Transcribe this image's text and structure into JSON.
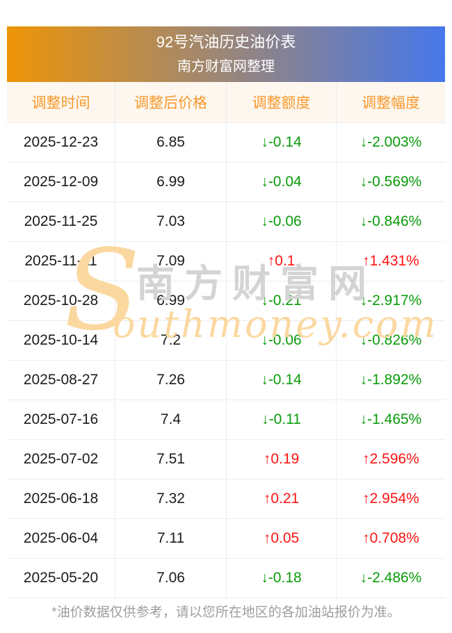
{
  "banner": {
    "title": "92号汽油历史油价表",
    "subtitle": "南方财富网整理",
    "gradient_from": "#ee9507",
    "gradient_to": "#4677eb"
  },
  "table": {
    "columns": [
      "调整时间",
      "调整后价格",
      "调整额度",
      "调整幅度"
    ],
    "rows": [
      {
        "date": "2025-12-23",
        "price": "6.85",
        "change": "↓-0.14",
        "pct": "↓-2.003%",
        "direction": "down"
      },
      {
        "date": "2025-12-09",
        "price": "6.99",
        "change": "↓-0.04",
        "pct": "↓-0.569%",
        "direction": "down"
      },
      {
        "date": "2025-11-25",
        "price": "7.03",
        "change": "↓-0.06",
        "pct": "↓-0.846%",
        "direction": "down"
      },
      {
        "date": "2025-11-11",
        "price": "7.09",
        "change": "↑0.1",
        "pct": "↑1.431%",
        "direction": "up"
      },
      {
        "date": "2025-10-28",
        "price": "6.99",
        "change": "↓-0.21",
        "pct": "↓-2.917%",
        "direction": "down"
      },
      {
        "date": "2025-10-14",
        "price": "7.2",
        "change": "↓-0.06",
        "pct": "↓-0.826%",
        "direction": "down"
      },
      {
        "date": "2025-08-27",
        "price": "7.26",
        "change": "↓-0.14",
        "pct": "↓-1.892%",
        "direction": "down"
      },
      {
        "date": "2025-07-16",
        "price": "7.4",
        "change": "↓-0.11",
        "pct": "↓-1.465%",
        "direction": "down"
      },
      {
        "date": "2025-07-02",
        "price": "7.51",
        "change": "↑0.19",
        "pct": "↑2.596%",
        "direction": "up"
      },
      {
        "date": "2025-06-18",
        "price": "7.32",
        "change": "↑0.21",
        "pct": "↑2.954%",
        "direction": "up"
      },
      {
        "date": "2025-06-04",
        "price": "7.11",
        "change": "↑0.05",
        "pct": "↑0.708%",
        "direction": "up"
      },
      {
        "date": "2025-05-20",
        "price": "7.06",
        "change": "↓-0.18",
        "pct": "↓-2.486%",
        "direction": "down"
      }
    ],
    "colors": {
      "up": "#fe1412",
      "down": "#0a9b0a",
      "header_text": "#f7992c",
      "header_bg": "#fdf7ef",
      "border": "#ebedf2"
    }
  },
  "watermark": {
    "initial": "S",
    "brand_cn": "南方财富网",
    "brand_en": "outhmoney.com"
  },
  "footer": {
    "note": "*油价数据仅供参考，请以您所在地区的各加油站报价为准。"
  },
  "chart_data": {
    "type": "table",
    "title": "92号汽油历史油价表",
    "subtitle": "南方财富网整理",
    "columns": [
      "调整时间",
      "调整后价格",
      "调整额度",
      "调整幅度"
    ],
    "rows": [
      [
        "2025-12-23",
        6.85,
        -0.14,
        -2.003
      ],
      [
        "2025-12-09",
        6.99,
        -0.04,
        -0.569
      ],
      [
        "2025-11-25",
        7.03,
        -0.06,
        -0.846
      ],
      [
        "2025-11-11",
        7.09,
        0.1,
        1.431
      ],
      [
        "2025-10-28",
        6.99,
        -0.21,
        -2.917
      ],
      [
        "2025-10-14",
        7.2,
        -0.06,
        -0.826
      ],
      [
        "2025-08-27",
        7.26,
        -0.14,
        -1.892
      ],
      [
        "2025-07-16",
        7.4,
        -0.11,
        -1.465
      ],
      [
        "2025-07-02",
        7.51,
        0.19,
        2.596
      ],
      [
        "2025-06-18",
        7.32,
        0.21,
        2.954
      ],
      [
        "2025-06-04",
        7.11,
        0.05,
        0.708
      ],
      [
        "2025-05-20",
        7.06,
        -0.18,
        -2.486
      ]
    ]
  }
}
